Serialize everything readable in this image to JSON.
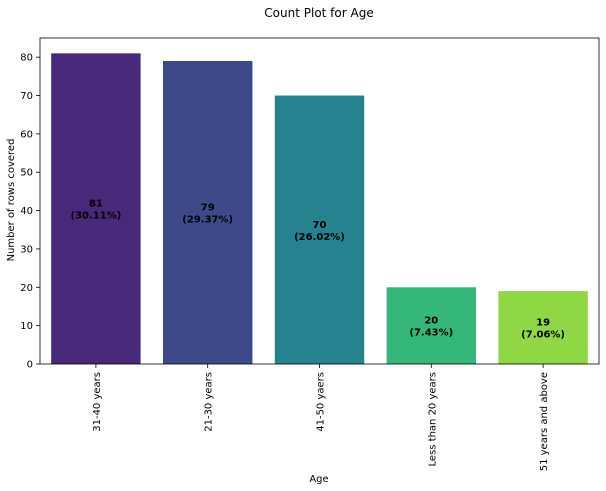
{
  "chart_data": {
    "type": "bar",
    "title": "Count Plot for Age",
    "xlabel": "Age",
    "ylabel": "Number of rows covered",
    "categories": [
      "31-40 years",
      "21-30 years",
      "41-50 yaers",
      "Less than 20 years",
      "51 years and above"
    ],
    "values": [
      81,
      79,
      70,
      20,
      19
    ],
    "value_labels": [
      "81",
      "79",
      "70",
      "20",
      "19"
    ],
    "percent_labels": [
      "(30.11%)",
      "(29.37%)",
      "(26.02%)",
      "(7.43%)",
      "(7.06%)"
    ],
    "colors": [
      "#482878",
      "#3e4989",
      "#26828e",
      "#35b779",
      "#8fd744"
    ],
    "ylim": [
      0,
      85
    ],
    "yticks": [
      0,
      10,
      20,
      30,
      40,
      50,
      60,
      70,
      80
    ],
    "grid": false,
    "legend": "none"
  }
}
